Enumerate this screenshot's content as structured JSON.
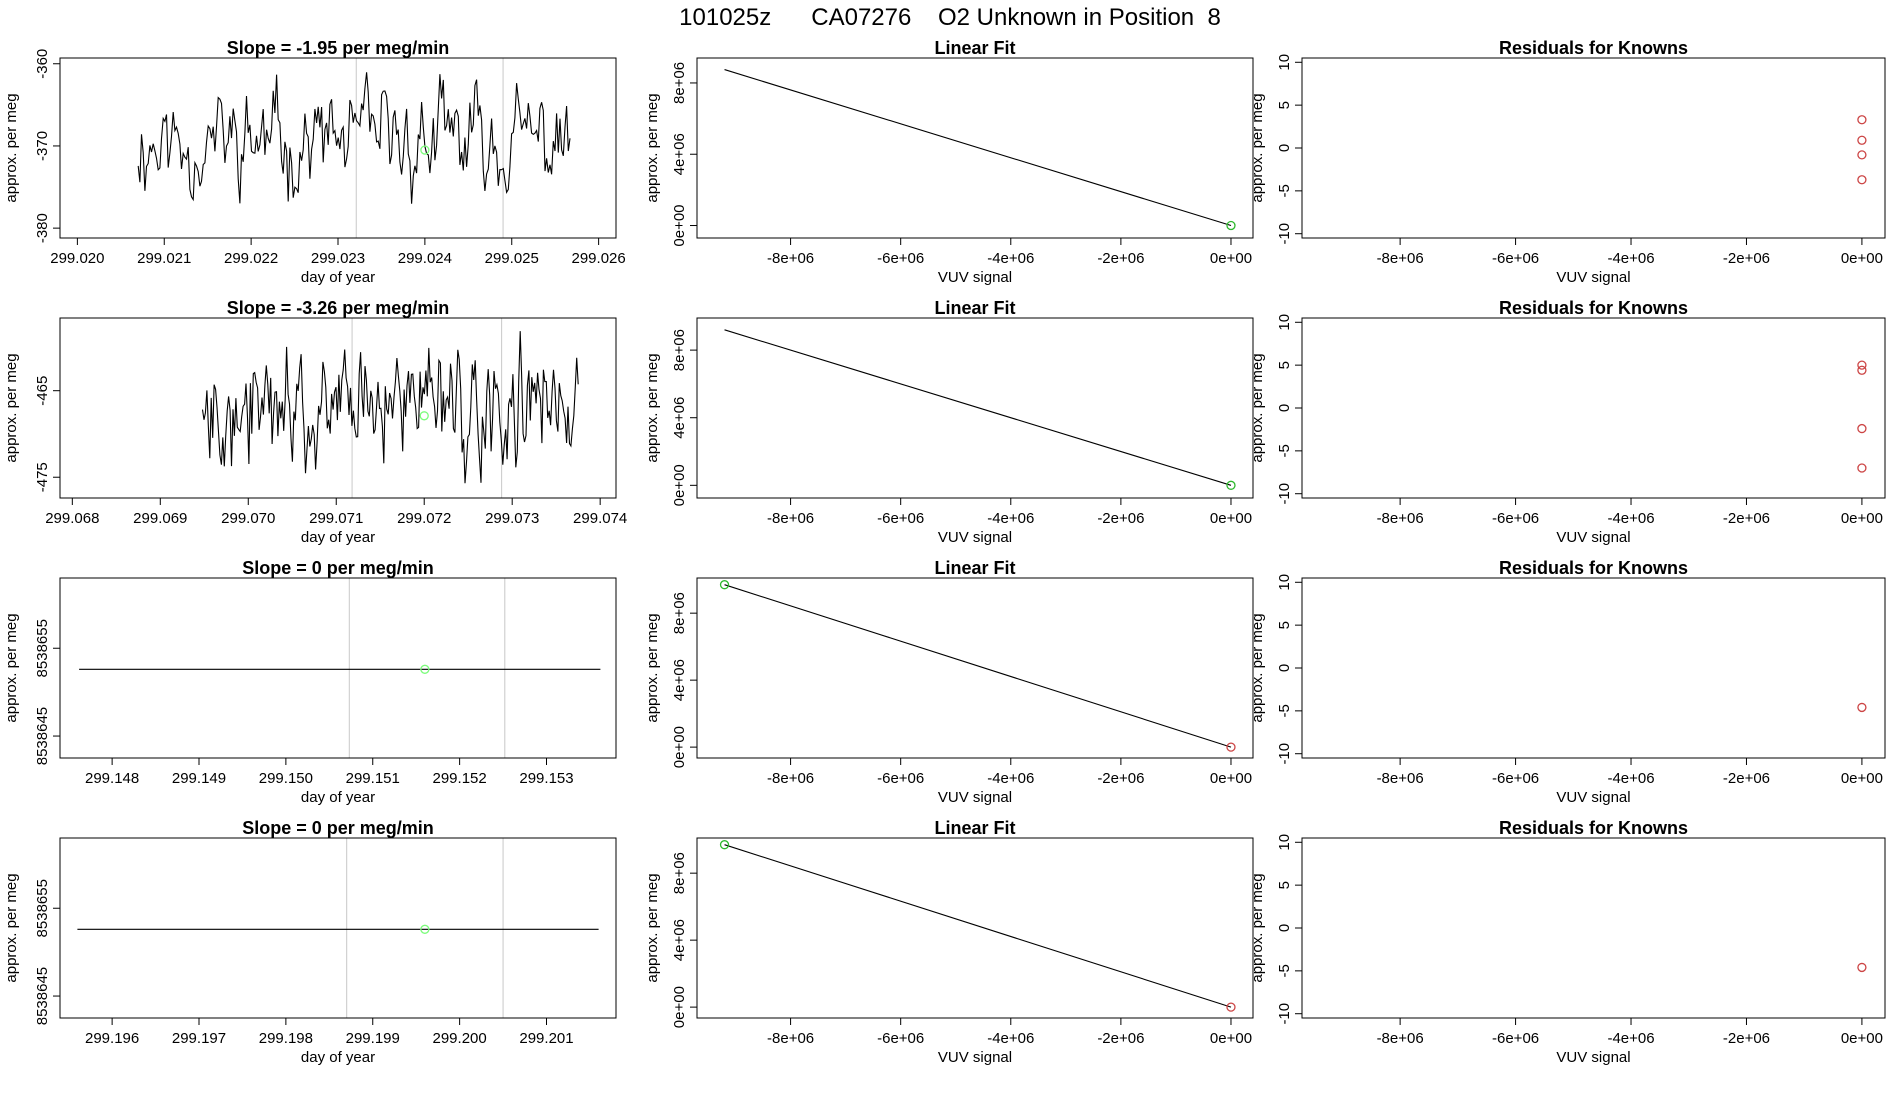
{
  "page": {
    "title": "101025z      CA07276    O2 Unknown in Position  8"
  },
  "chart_data": [
    {
      "type": "line",
      "name": "timeseries-1",
      "title": "Slope =  -1.95  per meg/min",
      "xlabel": "day of year",
      "ylabel": "approx. per meg",
      "xlim": [
        299.0198,
        299.0262
      ],
      "ylim": [
        -381.2,
        -359.3
      ],
      "xticks": [
        "299.020",
        "299.021",
        "299.022",
        "299.023",
        "299.024",
        "299.025",
        "299.026"
      ],
      "xtick_values": [
        299.02,
        299.021,
        299.022,
        299.023,
        299.024,
        299.025,
        299.026
      ],
      "yticks": [
        "-360",
        "-370",
        "-380"
      ],
      "ytick_values": [
        -360,
        -370,
        -380
      ],
      "vlines": [
        299.02321,
        299.0249
      ],
      "marker": {
        "x": 299.024,
        "y": -370.5,
        "color": "#7CFC7C"
      },
      "series": [
        {
          "seed": 11,
          "x_start": 299.0207,
          "x_end": 299.02567,
          "mean": -369.5,
          "amp": 8.5
        }
      ]
    },
    {
      "type": "line",
      "name": "linear-fit-1",
      "title": "Linear Fit",
      "xlabel": "VUV signal",
      "ylabel": "approx. per meg",
      "xlim": [
        -9700000.0,
        400000.0
      ],
      "ylim": [
        -700000.0,
        9400000.0
      ],
      "xticks": [
        "-8e+06",
        "-6e+06",
        "-4e+06",
        "-2e+06",
        "0e+00"
      ],
      "xtick_values": [
        -8000000.0,
        -6000000.0,
        -4000000.0,
        -2000000.0,
        0
      ],
      "yticks": [
        "0e+00",
        "4e+06",
        "8e+06"
      ],
      "ytick_values": [
        0,
        4000000.0,
        8000000.0
      ],
      "line": [
        [
          -9200000.0,
          8750000.0
        ],
        [
          0,
          0
        ]
      ],
      "points": [
        {
          "x": 0,
          "y": 0,
          "color": "#2EB82E"
        }
      ]
    },
    {
      "type": "scatter",
      "name": "residuals-1",
      "title": "Residuals for Knowns",
      "xlabel": "VUV signal",
      "ylabel": "approx. per meg",
      "xlim": [
        -9700000.0,
        400000.0
      ],
      "ylim": [
        -10.5,
        10.5
      ],
      "xticks": [
        "-8e+06",
        "-6e+06",
        "-4e+06",
        "-2e+06",
        "0e+00"
      ],
      "xtick_values": [
        -8000000.0,
        -6000000.0,
        -4000000.0,
        -2000000.0,
        0
      ],
      "yticks": [
        "-10",
        "-5",
        "0",
        "5",
        "10"
      ],
      "ytick_values": [
        -10,
        -5,
        0,
        5,
        10
      ],
      "points": [
        {
          "x": 0,
          "y": 3.3,
          "color": "#CC4444"
        },
        {
          "x": 0,
          "y": 0.9,
          "color": "#CC4444"
        },
        {
          "x": 0,
          "y": -0.8,
          "color": "#CC4444"
        },
        {
          "x": 0,
          "y": -3.7,
          "color": "#CC4444"
        }
      ]
    },
    {
      "type": "line",
      "name": "timeseries-2",
      "title": "Slope =  -3.26  per meg/min",
      "xlabel": "day of year",
      "ylabel": "approx. per meg",
      "xlim": [
        299.06786,
        299.07418
      ],
      "ylim": [
        -477.4,
        -456.6
      ],
      "xticks": [
        "299.068",
        "299.069",
        "299.070",
        "299.071",
        "299.072",
        "299.073",
        "299.074"
      ],
      "xtick_values": [
        299.068,
        299.069,
        299.07,
        299.071,
        299.072,
        299.073,
        299.074
      ],
      "yticks": [
        "-465",
        "-475"
      ],
      "ytick_values": [
        -465,
        -475
      ],
      "vlines": [
        299.07118,
        299.07288
      ],
      "marker": {
        "x": 299.072,
        "y": -467.9,
        "color": "#7CFC7C"
      },
      "series": [
        {
          "seed": 27,
          "x_start": 299.06948,
          "x_end": 299.07375,
          "mean": -466.5,
          "amp": 10
        }
      ]
    },
    {
      "type": "line",
      "name": "linear-fit-2",
      "title": "Linear Fit",
      "xlabel": "VUV signal",
      "ylabel": "approx. per meg",
      "xlim": [
        -9700000.0,
        400000.0
      ],
      "ylim": [
        -750000.0,
        9900000.0
      ],
      "xticks": [
        "-8e+06",
        "-6e+06",
        "-4e+06",
        "-2e+06",
        "0e+00"
      ],
      "xtick_values": [
        -8000000.0,
        -6000000.0,
        -4000000.0,
        -2000000.0,
        0
      ],
      "yticks": [
        "0e+00",
        "4e+06",
        "8e+06"
      ],
      "ytick_values": [
        0,
        4000000.0,
        8000000.0
      ],
      "line": [
        [
          -9200000.0,
          9200000.0
        ],
        [
          0,
          0
        ]
      ],
      "points": [
        {
          "x": 0,
          "y": 0,
          "color": "#2EB82E"
        }
      ]
    },
    {
      "type": "scatter",
      "name": "residuals-2",
      "title": "Residuals for Knowns",
      "xlabel": "VUV signal",
      "ylabel": "approx. per meg",
      "xlim": [
        -9700000.0,
        400000.0
      ],
      "ylim": [
        -10.5,
        10.5
      ],
      "xticks": [
        "-8e+06",
        "-6e+06",
        "-4e+06",
        "-2e+06",
        "0e+00"
      ],
      "xtick_values": [
        -8000000.0,
        -6000000.0,
        -4000000.0,
        -2000000.0,
        0
      ],
      "yticks": [
        "-10",
        "-5",
        "0",
        "5",
        "10"
      ],
      "ytick_values": [
        -10,
        -5,
        0,
        5,
        10
      ],
      "points": [
        {
          "x": 0,
          "y": 5.0,
          "color": "#CC4444"
        },
        {
          "x": 0,
          "y": 4.4,
          "color": "#CC4444"
        },
        {
          "x": 0,
          "y": -2.4,
          "color": "#CC4444"
        },
        {
          "x": 0,
          "y": -7.0,
          "color": "#CC4444"
        }
      ]
    },
    {
      "type": "line",
      "name": "timeseries-3",
      "title": "Slope =  0  per meg/min",
      "xlabel": "day of year",
      "ylabel": "approx. per meg",
      "xlim": [
        299.1474,
        299.1538
      ],
      "ylim": [
        8538642.5,
        8538663
      ],
      "xticks": [
        "299.148",
        "299.149",
        "299.150",
        "299.151",
        "299.152",
        "299.153"
      ],
      "xtick_values": [
        299.148,
        299.149,
        299.15,
        299.151,
        299.152,
        299.153
      ],
      "yticks": [
        "8538645",
        "8538655"
      ],
      "ytick_values": [
        8538645,
        8538655
      ],
      "vlines": [
        299.15073,
        299.15252
      ],
      "marker": {
        "x": 299.1516,
        "y": 8538652.6,
        "color": "#7CFC7C"
      },
      "series": [
        {
          "flat": true,
          "x_start": 299.14762,
          "x_end": 299.15362,
          "y": 8538652.6
        }
      ]
    },
    {
      "type": "line",
      "name": "linear-fit-3",
      "title": "Linear Fit",
      "xlabel": "VUV signal",
      "ylabel": "approx. per meg",
      "xlim": [
        -9700000.0,
        400000.0
      ],
      "ylim": [
        -650000.0,
        10100000.0
      ],
      "xticks": [
        "-8e+06",
        "-6e+06",
        "-4e+06",
        "-2e+06",
        "0e+00"
      ],
      "xtick_values": [
        -8000000.0,
        -6000000.0,
        -4000000.0,
        -2000000.0,
        0
      ],
      "yticks": [
        "0e+00",
        "4e+06",
        "8e+06"
      ],
      "ytick_values": [
        0,
        4000000.0,
        8000000.0
      ],
      "line": [
        [
          -9200000.0,
          9700000.0
        ],
        [
          0,
          0
        ]
      ],
      "points": [
        {
          "x": -9200000.0,
          "y": 9700000.0,
          "color": "#2EB82E"
        },
        {
          "x": 0,
          "y": 0,
          "color": "#CC4444"
        }
      ]
    },
    {
      "type": "scatter",
      "name": "residuals-3",
      "title": "Residuals for Knowns",
      "xlabel": "VUV signal",
      "ylabel": "approx. per meg",
      "xlim": [
        -9700000.0,
        400000.0
      ],
      "ylim": [
        -10.5,
        10.5
      ],
      "xticks": [
        "-8e+06",
        "-6e+06",
        "-4e+06",
        "-2e+06",
        "0e+00"
      ],
      "xtick_values": [
        -8000000.0,
        -6000000.0,
        -4000000.0,
        -2000000.0,
        0
      ],
      "yticks": [
        "-10",
        "-5",
        "0",
        "5",
        "10"
      ],
      "ytick_values": [
        -10,
        -5,
        0,
        5,
        10
      ],
      "points": [
        {
          "x": 0,
          "y": -4.6,
          "color": "#CC4444"
        }
      ]
    },
    {
      "type": "line",
      "name": "timeseries-4",
      "title": "Slope =  0  per meg/min",
      "xlabel": "day of year",
      "ylabel": "approx. per meg",
      "xlim": [
        299.1954,
        299.2018
      ],
      "ylim": [
        8538642.5,
        8538663
      ],
      "xticks": [
        "299.196",
        "299.197",
        "299.198",
        "299.199",
        "299.200",
        "299.201"
      ],
      "xtick_values": [
        299.196,
        299.197,
        299.198,
        299.199,
        299.2,
        299.201
      ],
      "yticks": [
        "8538645",
        "8538655"
      ],
      "ytick_values": [
        8538645,
        8538655
      ],
      "vlines": [
        299.1987,
        299.2005
      ],
      "marker": {
        "x": 299.1996,
        "y": 8538652.6,
        "color": "#7CFC7C"
      },
      "series": [
        {
          "flat": true,
          "x_start": 299.1956,
          "x_end": 299.2016,
          "y": 8538652.6
        }
      ]
    },
    {
      "type": "line",
      "name": "linear-fit-4",
      "title": "Linear Fit",
      "xlabel": "VUV signal",
      "ylabel": "approx. per meg",
      "xlim": [
        -9700000.0,
        400000.0
      ],
      "ylim": [
        -650000.0,
        10100000.0
      ],
      "xticks": [
        "-8e+06",
        "-6e+06",
        "-4e+06",
        "-2e+06",
        "0e+00"
      ],
      "xtick_values": [
        -8000000.0,
        -6000000.0,
        -4000000.0,
        -2000000.0,
        0
      ],
      "yticks": [
        "0e+00",
        "4e+06",
        "8e+06"
      ],
      "ytick_values": [
        0,
        4000000.0,
        8000000.0
      ],
      "line": [
        [
          -9200000.0,
          9700000.0
        ],
        [
          0,
          0
        ]
      ],
      "points": [
        {
          "x": -9200000.0,
          "y": 9700000.0,
          "color": "#2EB82E"
        },
        {
          "x": 0,
          "y": 0,
          "color": "#CC4444"
        }
      ]
    },
    {
      "type": "scatter",
      "name": "residuals-4",
      "title": "Residuals for Knowns",
      "xlabel": "VUV signal",
      "ylabel": "approx. per meg",
      "xlim": [
        -9700000.0,
        400000.0
      ],
      "ylim": [
        -10.5,
        10.5
      ],
      "xticks": [
        "-8e+06",
        "-6e+06",
        "-4e+06",
        "-2e+06",
        "0e+00"
      ],
      "xtick_values": [
        -8000000.0,
        -6000000.0,
        -4000000.0,
        -2000000.0,
        0
      ],
      "yticks": [
        "-10",
        "-5",
        "0",
        "5",
        "10"
      ],
      "ytick_values": [
        -10,
        -5,
        0,
        5,
        10
      ],
      "points": [
        {
          "x": 0,
          "y": -4.6,
          "color": "#CC4444"
        }
      ]
    }
  ]
}
